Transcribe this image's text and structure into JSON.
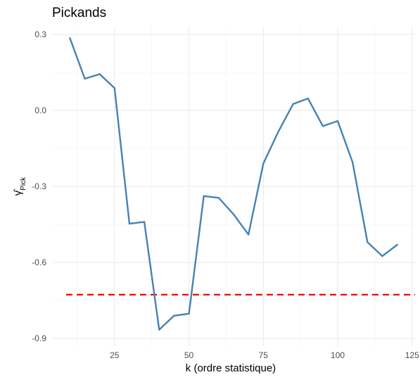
{
  "chart_data": {
    "type": "line",
    "title": "Pickands",
    "xlabel": "k (ordre statistique)",
    "ylabel": "γ̂",
    "ylabel_subscript": "Pick",
    "xlim": [
      4,
      126
    ],
    "ylim": [
      -0.93,
      0.33
    ],
    "x_ticks": [
      25,
      50,
      75,
      100,
      125
    ],
    "x_tick_labels": [
      "25",
      "50",
      "75",
      "100",
      "125"
    ],
    "y_ticks": [
      -0.9,
      -0.6,
      -0.3,
      0.0,
      0.3
    ],
    "y_tick_labels": [
      "-0.9",
      "-0.6",
      "-0.3",
      "0.0",
      "0.3"
    ],
    "grid": true,
    "series": [
      {
        "color": "#4682b4",
        "x": [
          10,
          15,
          20,
          25,
          30,
          35,
          40,
          45,
          50,
          55,
          60,
          65,
          70,
          75,
          80,
          85,
          90,
          95,
          100,
          105,
          110,
          115,
          120
        ],
        "y": [
          0.285,
          0.125,
          0.143,
          0.088,
          -0.447,
          -0.44,
          -0.865,
          -0.81,
          -0.802,
          -0.338,
          -0.345,
          -0.41,
          -0.49,
          -0.21,
          -0.085,
          0.025,
          0.047,
          -0.062,
          -0.042,
          -0.205,
          -0.52,
          -0.575,
          -0.53
        ]
      }
    ],
    "reference_line": {
      "y": -0.727,
      "color": "#ff0000",
      "style": "dashed"
    }
  }
}
